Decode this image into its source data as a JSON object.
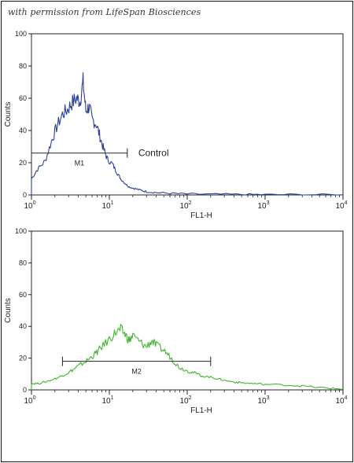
{
  "credit": "with permission from LifeSpan Biosciences",
  "chart_data": [
    {
      "type": "line",
      "title": "",
      "xlabel": "FL1-H",
      "ylabel": "Counts",
      "xscale": "log",
      "xlim": [
        1,
        10000
      ],
      "ylim": [
        0,
        100
      ],
      "yticks": [
        0,
        20,
        40,
        60,
        80,
        100
      ],
      "xticks": [
        {
          "base": "10",
          "exp": "0"
        },
        {
          "base": "10",
          "exp": "1"
        },
        {
          "base": "10",
          "exp": "2"
        },
        {
          "base": "10",
          "exp": "3"
        },
        {
          "base": "10",
          "exp": "4"
        }
      ],
      "series": [
        {
          "color": "#2b3f9c",
          "x": [
            1.0,
            1.2,
            1.5,
            1.8,
            2.1,
            2.5,
            2.9,
            3.3,
            3.8,
            4.2,
            4.6,
            5.0,
            5.5,
            6.0,
            6.8,
            7.6,
            8.5,
            9.5,
            11,
            12.5,
            14,
            16,
            18,
            21,
            25,
            30,
            40,
            60,
            100,
            200,
            500,
            1000,
            3000,
            10000
          ],
          "y": [
            10,
            16,
            21,
            33,
            42,
            50,
            53,
            57,
            60,
            58,
            70,
            52,
            55,
            47,
            44,
            36,
            28,
            22,
            19,
            14,
            10,
            7,
            5,
            4,
            3,
            2,
            1.5,
            1,
            0.6,
            0.4,
            0.3,
            0.2,
            0.2,
            0.1
          ]
        }
      ],
      "gate": {
        "label": "M1",
        "x_start": 1,
        "x_end": 17,
        "y": 26
      },
      "annotation": "Control"
    },
    {
      "type": "line",
      "title": "",
      "xlabel": "FL1-H",
      "ylabel": "Counts",
      "xscale": "log",
      "xlim": [
        1,
        10000
      ],
      "ylim": [
        0,
        100
      ],
      "yticks": [
        0,
        20,
        40,
        60,
        80,
        100
      ],
      "xticks": [
        {
          "base": "10",
          "exp": "0"
        },
        {
          "base": "10",
          "exp": "1"
        },
        {
          "base": "10",
          "exp": "2"
        },
        {
          "base": "10",
          "exp": "3"
        },
        {
          "base": "10",
          "exp": "4"
        }
      ],
      "series": [
        {
          "color": "#3fb52d",
          "x": [
            1.0,
            1.2,
            1.5,
            2.0,
            2.5,
            3.0,
            3.5,
            4.0,
            5.0,
            6.0,
            7.0,
            8.0,
            10,
            12,
            14,
            16,
            18,
            20,
            25,
            30,
            35,
            40,
            50,
            60,
            70,
            80,
            100,
            120,
            150,
            200,
            250,
            300,
            400,
            500,
            700,
            1000,
            2000,
            3000,
            5000,
            7000,
            10000
          ],
          "y": [
            4,
            4,
            5,
            7,
            9,
            11,
            13,
            15,
            18,
            21,
            24,
            27,
            32,
            36,
            38,
            35,
            31,
            34,
            30,
            27,
            31,
            28,
            25,
            21,
            17,
            14,
            12,
            11,
            9,
            8,
            7,
            6,
            5,
            4.5,
            4,
            3.5,
            3,
            2.5,
            1.5,
            1,
            0.5
          ]
        }
      ],
      "gate": {
        "label": "M2",
        "x_start": 2.5,
        "x_end": 200,
        "y": 18
      }
    }
  ]
}
